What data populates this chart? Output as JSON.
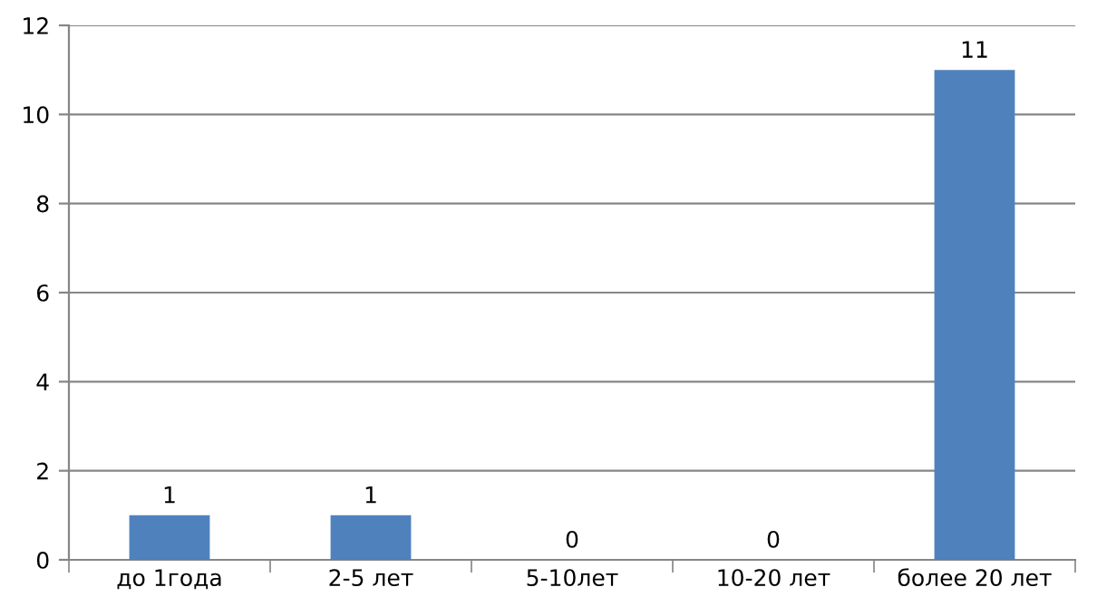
{
  "chart_data": {
    "type": "bar",
    "categories": [
      "до 1года",
      "2-5 лет",
      "5-10лет",
      "10-20 лет",
      "более 20 лет"
    ],
    "values": [
      1,
      1,
      0,
      0,
      11
    ],
    "color": "#4f81bd",
    "ylim": [
      0,
      12
    ],
    "yticks": [
      0,
      2,
      4,
      6,
      8,
      10,
      12
    ],
    "grid": "y",
    "data_labels": true
  }
}
